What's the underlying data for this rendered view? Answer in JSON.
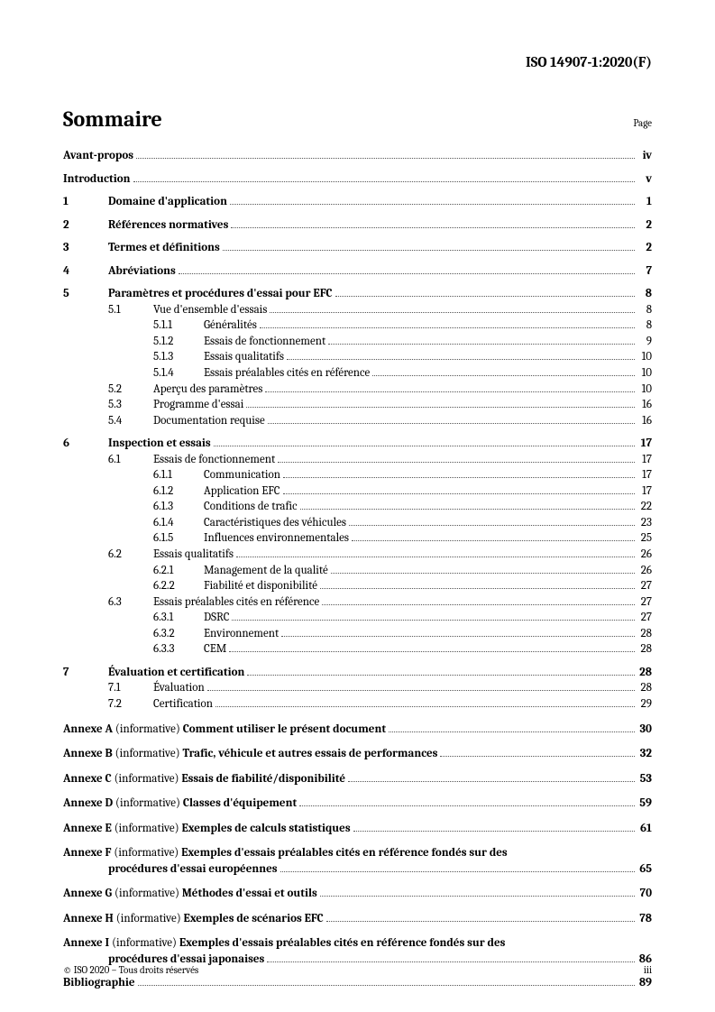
{
  "header": {
    "doc_id": "ISO 14907-1:2020(F)"
  },
  "toc": {
    "title": "Sommaire",
    "page_label": "Page",
    "entries": [
      {
        "type": "simple",
        "label": "Avant-propos",
        "page": "iv",
        "bold": true,
        "gap": false
      },
      {
        "type": "simple",
        "label": "Introduction",
        "page": "v",
        "bold": true,
        "gap": true
      },
      {
        "type": "l1",
        "num": "1",
        "label": "Domaine d'application",
        "page": "1",
        "gap": true
      },
      {
        "type": "l1",
        "num": "2",
        "label": "Références normatives",
        "page": "2",
        "gap": true
      },
      {
        "type": "l1",
        "num": "3",
        "label": "Termes et définitions",
        "page": "2",
        "gap": true
      },
      {
        "type": "l1",
        "num": "4",
        "label": "Abréviations",
        "page": "7",
        "gap": true
      },
      {
        "type": "l1",
        "num": "5",
        "label": "Paramètres et procédures d'essai pour EFC",
        "page": "8",
        "gap": true
      },
      {
        "type": "l2",
        "num": "5.1",
        "label": "Vue d'ensemble d'essais",
        "page": "8"
      },
      {
        "type": "l3",
        "num": "5.1.1",
        "label": "Généralités",
        "page": "8"
      },
      {
        "type": "l3",
        "num": "5.1.2",
        "label": "Essais de fonctionnement",
        "page": "9"
      },
      {
        "type": "l3",
        "num": "5.1.3",
        "label": "Essais qualitatifs",
        "page": "10"
      },
      {
        "type": "l3",
        "num": "5.1.4",
        "label": "Essais préalables cités en référence",
        "page": "10"
      },
      {
        "type": "l2",
        "num": "5.2",
        "label": "Aperçu des paramètres",
        "page": "10"
      },
      {
        "type": "l2",
        "num": "5.3",
        "label": "Programme d'essai",
        "page": "16"
      },
      {
        "type": "l2",
        "num": "5.4",
        "label": "Documentation requise",
        "page": "16"
      },
      {
        "type": "l1",
        "num": "6",
        "label": "Inspection et essais",
        "page": "17",
        "gap": true
      },
      {
        "type": "l2",
        "num": "6.1",
        "label": "Essais de fonctionnement",
        "page": "17"
      },
      {
        "type": "l3",
        "num": "6.1.1",
        "label": "Communication",
        "page": "17"
      },
      {
        "type": "l3",
        "num": "6.1.2",
        "label": "Application EFC",
        "page": "17"
      },
      {
        "type": "l3",
        "num": "6.1.3",
        "label": "Conditions de trafic",
        "page": "22"
      },
      {
        "type": "l3",
        "num": "6.1.4",
        "label": "Caractéristiques des véhicules",
        "page": "23"
      },
      {
        "type": "l3",
        "num": "6.1.5",
        "label": "Influences environnementales",
        "page": "25"
      },
      {
        "type": "l2",
        "num": "6.2",
        "label": "Essais qualitatifs",
        "page": "26"
      },
      {
        "type": "l3",
        "num": "6.2.1",
        "label": "Management de la qualité",
        "page": "26"
      },
      {
        "type": "l3",
        "num": "6.2.2",
        "label": "Fiabilité et disponibilité",
        "page": "27"
      },
      {
        "type": "l2",
        "num": "6.3",
        "label": "Essais préalables cités en référence",
        "page": "27"
      },
      {
        "type": "l3",
        "num": "6.3.1",
        "label": "DSRC",
        "page": "27"
      },
      {
        "type": "l3",
        "num": "6.3.2",
        "label": "Environnement",
        "page": "28"
      },
      {
        "type": "l3",
        "num": "6.3.3",
        "label": "CEM",
        "page": "28"
      },
      {
        "type": "l1",
        "num": "7",
        "label": "Évaluation et certification",
        "page": "28",
        "gap": true
      },
      {
        "type": "l2",
        "num": "7.1",
        "label": "Évaluation",
        "page": "28"
      },
      {
        "type": "l2",
        "num": "7.2",
        "label": "Certification",
        "page": "29"
      },
      {
        "type": "annex",
        "prefix": "Annexe A",
        "info": " (informative) ",
        "title": "Comment utiliser le présent document",
        "page": "30"
      },
      {
        "type": "annex",
        "prefix": "Annexe B",
        "info": " (informative) ",
        "title": "Trafic, véhicule et autres essais de performances",
        "page": "32"
      },
      {
        "type": "annex",
        "prefix": "Annexe C",
        "info": " (informative) ",
        "title": "Essais de fiabilité/disponibilité",
        "page": "53"
      },
      {
        "type": "annex",
        "prefix": "Annexe D",
        "info": " (informative) ",
        "title": "Classes d'équipement",
        "page": "59"
      },
      {
        "type": "annex",
        "prefix": "Annexe E",
        "info": " (informative) ",
        "title": "Exemples de calculs statistiques",
        "page": "61"
      },
      {
        "type": "annex2",
        "prefix": "Annexe F",
        "info": " (informative) ",
        "title1": "Exemples d'essais préalables cités en référence fondés sur des",
        "title2": "procédures d'essai européennes",
        "page": "65"
      },
      {
        "type": "annex",
        "prefix": "Annexe G",
        "info": " (informative) ",
        "title": "Méthodes d'essai et outils",
        "page": "70"
      },
      {
        "type": "annex",
        "prefix": "Annexe H",
        "info": " (informative) ",
        "title": "Exemples de scénarios EFC",
        "page": "78"
      },
      {
        "type": "annex2",
        "prefix": "Annexe I",
        "info": " (informative) ",
        "title1": "Exemples d'essais préalables cités en référence fondés sur des",
        "title2": "procédures d'essai japonaises",
        "page": "86"
      },
      {
        "type": "simple",
        "label": "Bibliographie",
        "page": "89",
        "bold": true,
        "gap": true
      }
    ]
  },
  "footer": {
    "left": "© ISO 2020 – Tous droits réservés",
    "right": "iii"
  }
}
